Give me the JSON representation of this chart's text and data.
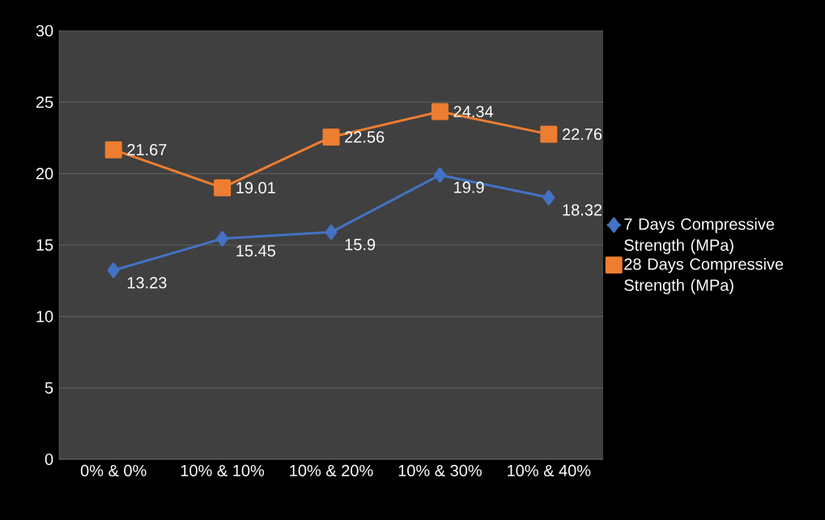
{
  "chart_data": {
    "type": "line",
    "categories": [
      "0% & 0%",
      "10% & 10%",
      "10% & 20%",
      "10% & 30%",
      "10% & 40%"
    ],
    "series": [
      {
        "name": "7 Days Compressive Strength (MPa)",
        "color": "#4472c4",
        "marker": "diamond",
        "values": [
          13.23,
          15.45,
          15.9,
          19.9,
          18.32
        ]
      },
      {
        "name": "28 Days Compressive Strength (MPa)",
        "color": "#ed7d31",
        "marker": "square",
        "values": [
          21.67,
          19.01,
          22.56,
          24.34,
          22.76
        ]
      }
    ],
    "ylim": [
      0,
      30
    ],
    "yticks": [
      0,
      5,
      10,
      15,
      20,
      25,
      30
    ],
    "grid": "y",
    "legend": "right",
    "data_labels": true,
    "line_style": "solid"
  }
}
